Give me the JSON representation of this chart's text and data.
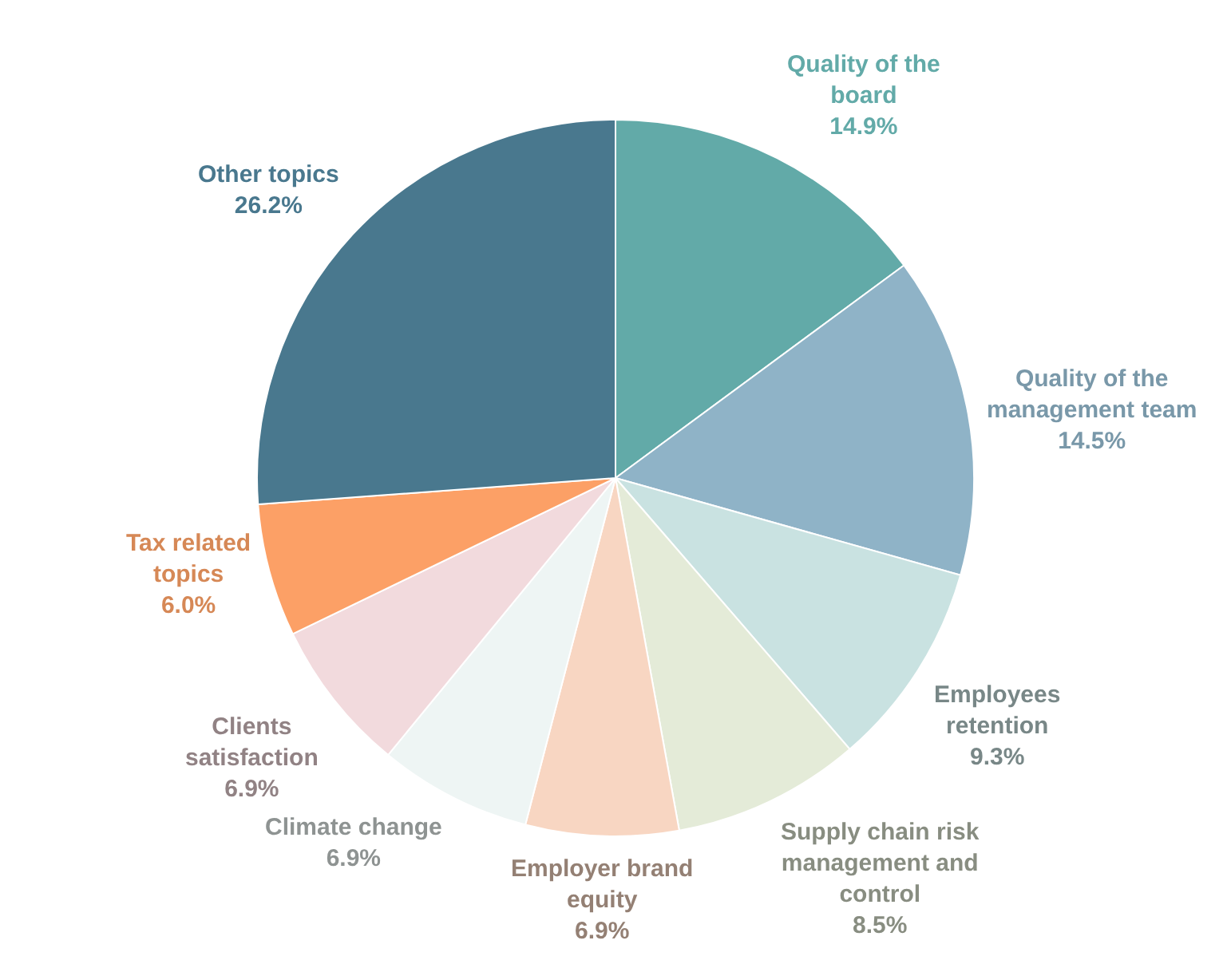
{
  "chart_data": {
    "type": "pie",
    "categories": [
      "Quality of the board",
      "Quality of the management team",
      "Employees retention",
      "Supply chain risk management and control",
      "Employer brand equity",
      "Climate change",
      "Clients satisfaction",
      "Tax related topics",
      "Other topics"
    ],
    "values": [
      14.9,
      14.5,
      9.3,
      8.5,
      6.9,
      6.9,
      6.9,
      6.0,
      26.2
    ],
    "value_labels": [
      "14.9%",
      "14.5%",
      "9.3%",
      "8.5%",
      "6.9%",
      "6.9%",
      "6.9%",
      "6.0%",
      "26.2%"
    ],
    "colors": [
      "#62aaa8",
      "#8fb3c7",
      "#c9e2e1",
      "#e4ebd8",
      "#f8d6c2",
      "#eef5f4",
      "#f2dadd",
      "#fca066",
      "#49788e"
    ],
    "legend": false
  }
}
